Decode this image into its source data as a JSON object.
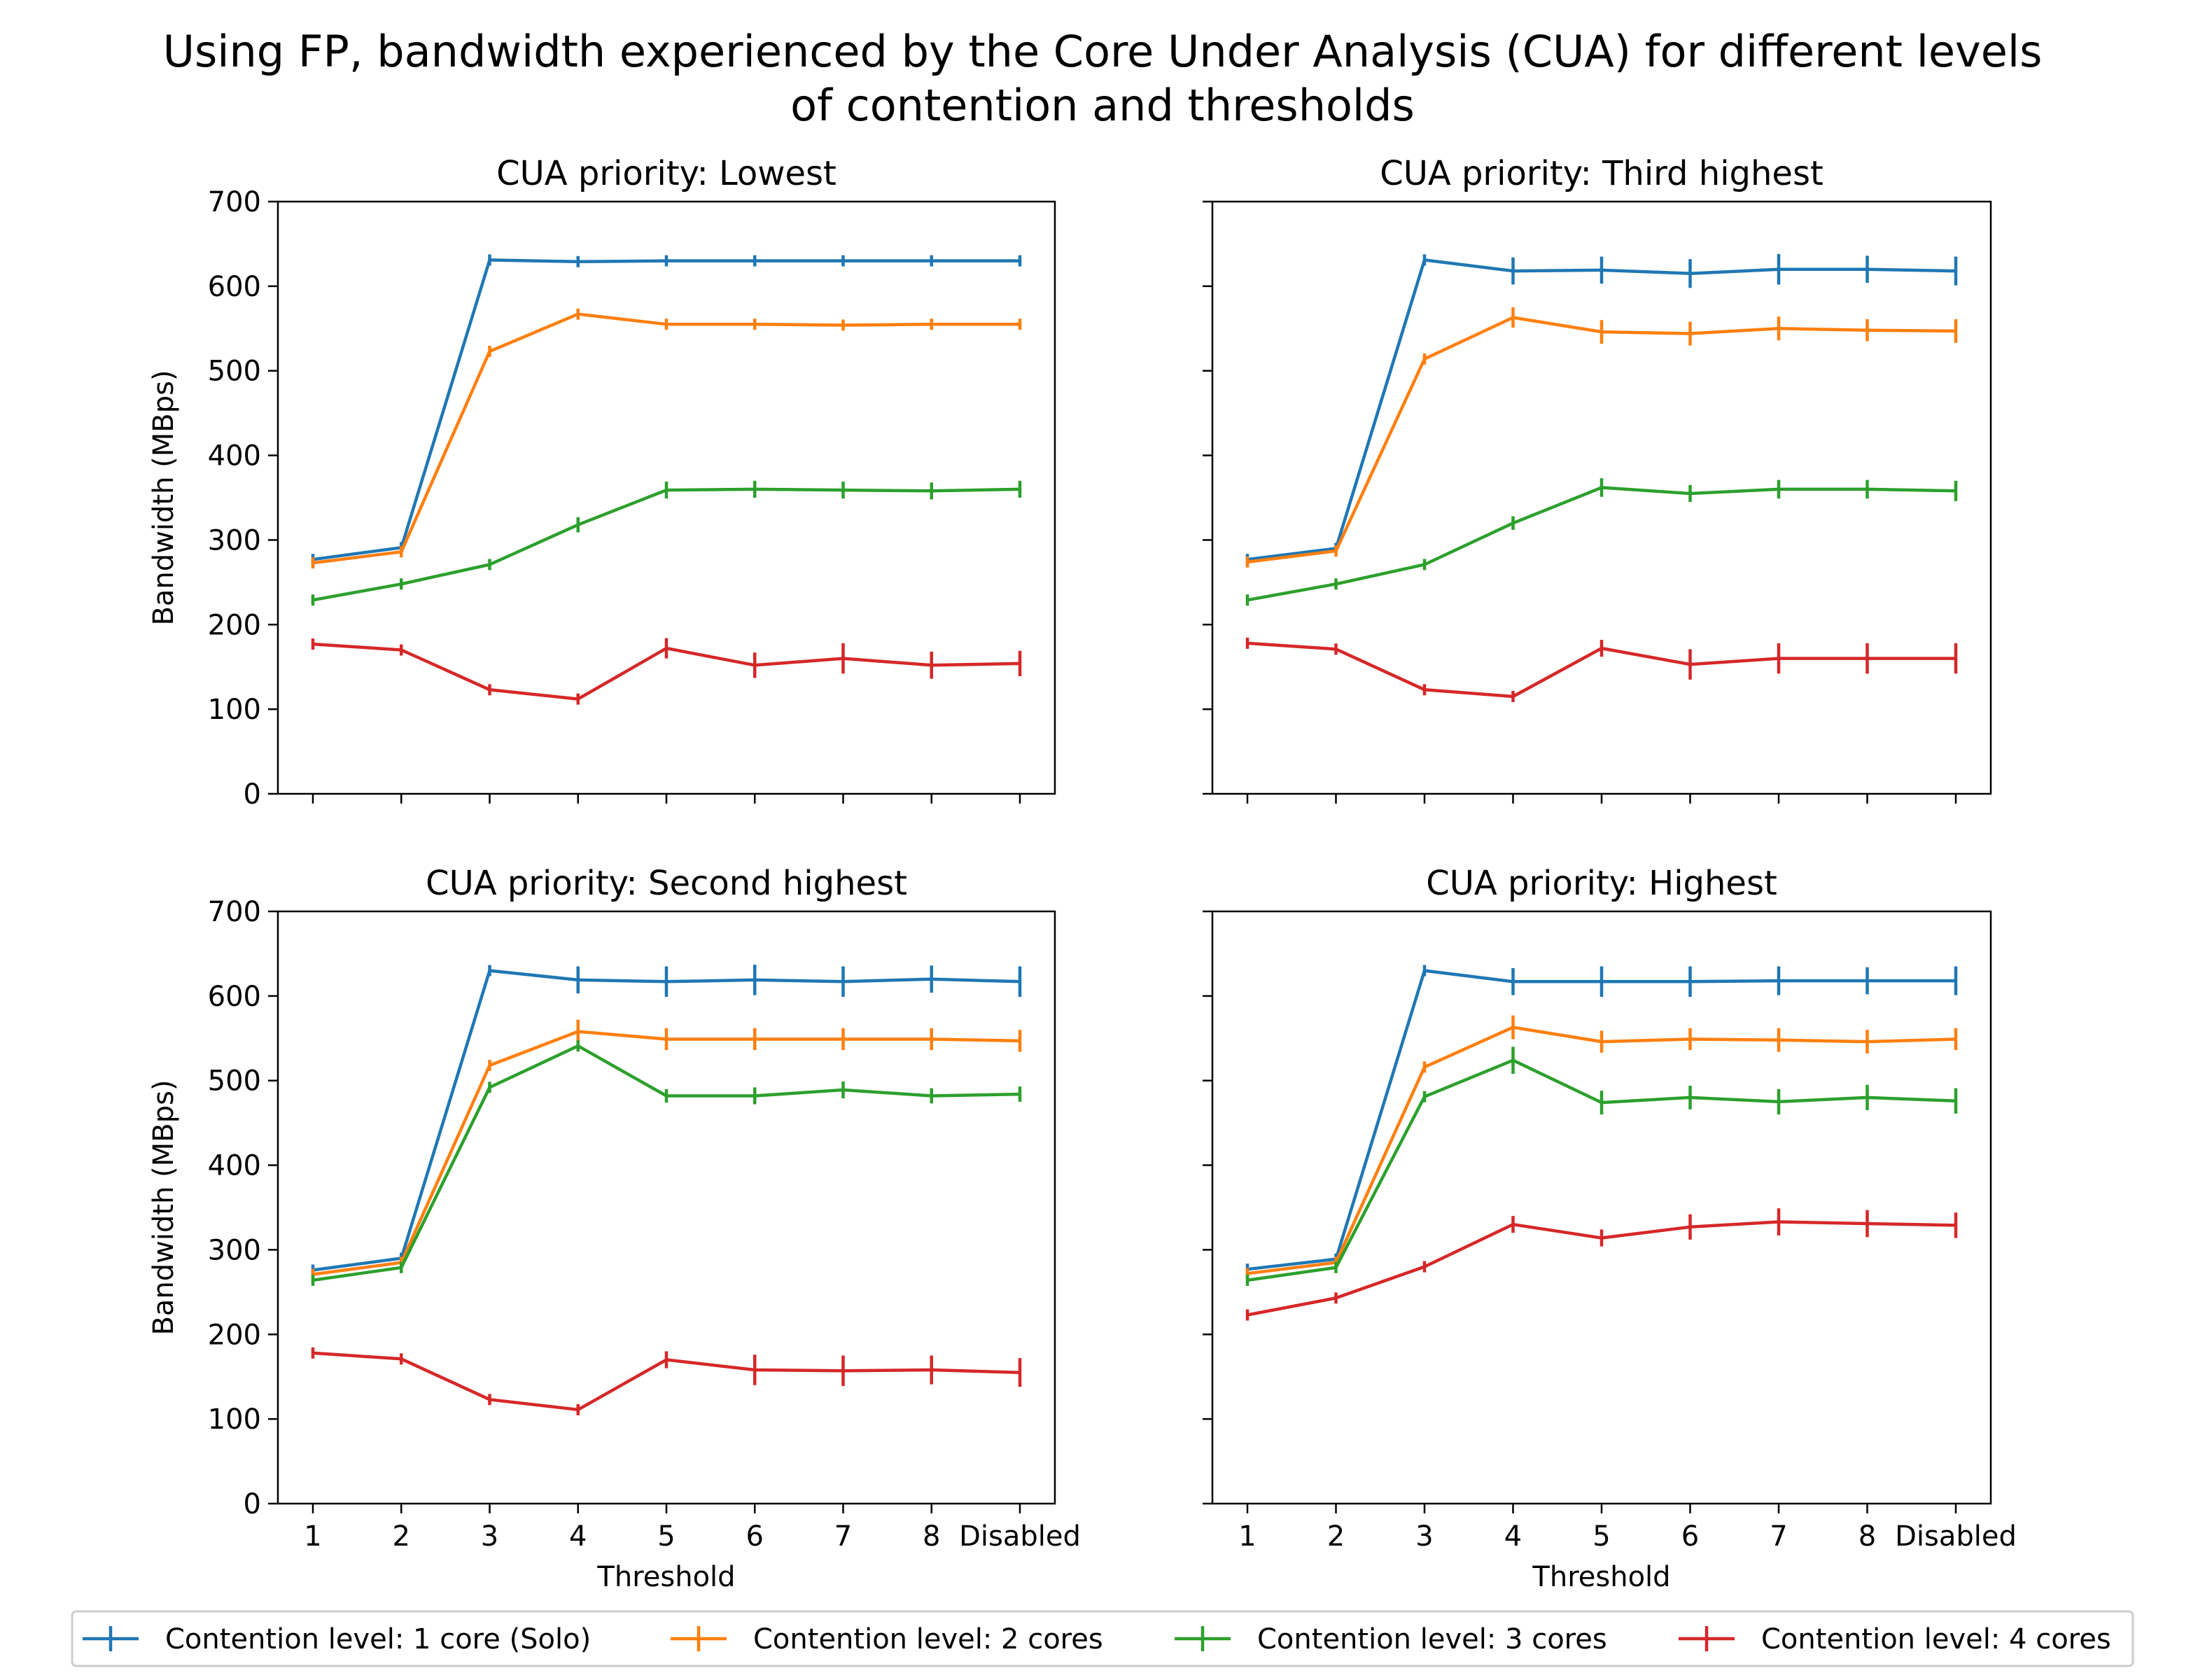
{
  "figure": {
    "title_line1": "Using FP, bandwidth experienced by the Core Under Analysis (CUA) for different levels",
    "title_line2": "of contention and thresholds"
  },
  "colors": {
    "c1": "#1f77b4",
    "c2": "#ff7f0e",
    "c3": "#2ca02c",
    "c4": "#d62728"
  },
  "legend": {
    "placement": "bottom-center",
    "entries": [
      "Contention level: 1 core (Solo)",
      "Contention level: 2 cores",
      "Contention level: 3 cores",
      "Contention level: 4 cores"
    ]
  },
  "chart_data": [
    {
      "type": "line",
      "title": "CUA priority: Lowest",
      "xlabel": "",
      "ylabel": "Bandwidth (MBps)",
      "categories": [
        "1",
        "2",
        "3",
        "4",
        "5",
        "6",
        "7",
        "8",
        "Disabled"
      ],
      "yticks": [
        "0",
        "100",
        "200",
        "300",
        "400",
        "500",
        "600",
        "700"
      ],
      "ylim": [
        0,
        700
      ],
      "show_xticklabels": false,
      "show_yticklabels": true,
      "grid": false,
      "series": [
        {
          "values": [
            277,
            291,
            631,
            629,
            630,
            630,
            630,
            630,
            630
          ],
          "err": [
            0,
            0,
            0,
            5,
            4,
            3,
            3,
            3,
            3
          ]
        },
        {
          "values": [
            273,
            286,
            523,
            567,
            555,
            555,
            554,
            555,
            555
          ],
          "err": [
            0,
            0,
            0,
            5,
            5,
            5,
            4,
            4,
            4
          ]
        },
        {
          "values": [
            229,
            248,
            271,
            318,
            359,
            360,
            359,
            358,
            360
          ],
          "err": [
            0,
            0,
            0,
            9,
            10,
            10,
            10,
            10,
            10
          ]
        },
        {
          "values": [
            177,
            170,
            123,
            112,
            172,
            152,
            160,
            152,
            154
          ],
          "err": [
            0,
            0,
            0,
            6,
            12,
            15,
            18,
            16,
            15
          ]
        }
      ]
    },
    {
      "type": "line",
      "title": "CUA priority: Third highest",
      "xlabel": "",
      "ylabel": "",
      "categories": [
        "1",
        "2",
        "3",
        "4",
        "5",
        "6",
        "7",
        "8",
        "Disabled"
      ],
      "yticks": [
        "0",
        "100",
        "200",
        "300",
        "400",
        "500",
        "600",
        "700"
      ],
      "ylim": [
        0,
        700
      ],
      "show_xticklabels": false,
      "show_yticklabels": false,
      "grid": false,
      "series": [
        {
          "values": [
            277,
            290,
            631,
            618,
            619,
            615,
            620,
            620,
            618
          ],
          "err": [
            0,
            0,
            0,
            16,
            16,
            17,
            18,
            16,
            17
          ]
        },
        {
          "values": [
            274,
            287,
            514,
            563,
            546,
            544,
            550,
            548,
            547
          ],
          "err": [
            0,
            0,
            0,
            12,
            14,
            14,
            14,
            13,
            14
          ]
        },
        {
          "values": [
            229,
            248,
            271,
            320,
            362,
            355,
            360,
            360,
            358
          ],
          "err": [
            0,
            0,
            0,
            8,
            11,
            10,
            11,
            11,
            12
          ]
        },
        {
          "values": [
            178,
            171,
            123,
            115,
            172,
            153,
            160,
            160,
            160
          ],
          "err": [
            0,
            0,
            0,
            6,
            10,
            18,
            18,
            18,
            18
          ]
        }
      ]
    },
    {
      "type": "line",
      "title": "CUA priority: Second highest",
      "xlabel": "Threshold",
      "ylabel": "Bandwidth (MBps)",
      "categories": [
        "1",
        "2",
        "3",
        "4",
        "5",
        "6",
        "7",
        "8",
        "Disabled"
      ],
      "yticks": [
        "0",
        "100",
        "200",
        "300",
        "400",
        "500",
        "600",
        "700"
      ],
      "ylim": [
        0,
        700
      ],
      "show_xticklabels": true,
      "show_yticklabels": true,
      "grid": false,
      "series": [
        {
          "values": [
            276,
            290,
            630,
            619,
            617,
            619,
            617,
            620,
            617
          ],
          "err": [
            0,
            0,
            0,
            16,
            18,
            18,
            18,
            16,
            18
          ]
        },
        {
          "values": [
            271,
            285,
            518,
            558,
            549,
            549,
            549,
            549,
            547
          ],
          "err": [
            0,
            0,
            5,
            14,
            13,
            13,
            13,
            13,
            13
          ]
        },
        {
          "values": [
            264,
            279,
            492,
            541,
            482,
            482,
            489,
            482,
            484
          ],
          "err": [
            0,
            0,
            0,
            6,
            8,
            10,
            10,
            9,
            9
          ]
        },
        {
          "values": [
            178,
            171,
            123,
            111,
            170,
            158,
            157,
            158,
            155
          ],
          "err": [
            0,
            0,
            0,
            6,
            10,
            18,
            18,
            17,
            17
          ]
        }
      ]
    },
    {
      "type": "line",
      "title": "CUA priority: Highest",
      "xlabel": "Threshold",
      "ylabel": "",
      "categories": [
        "1",
        "2",
        "3",
        "4",
        "5",
        "6",
        "7",
        "8",
        "Disabled"
      ],
      "yticks": [
        "0",
        "100",
        "200",
        "300",
        "400",
        "500",
        "600",
        "700"
      ],
      "ylim": [
        0,
        700
      ],
      "show_xticklabels": true,
      "show_yticklabels": false,
      "grid": false,
      "series": [
        {
          "values": [
            277,
            289,
            630,
            617,
            617,
            617,
            618,
            618,
            618
          ],
          "err": [
            0,
            0,
            0,
            16,
            18,
            18,
            17,
            16,
            17
          ]
        },
        {
          "values": [
            272,
            285,
            516,
            563,
            546,
            549,
            548,
            546,
            549
          ],
          "err": [
            0,
            0,
            5,
            14,
            13,
            13,
            14,
            14,
            13
          ]
        },
        {
          "values": [
            264,
            279,
            481,
            524,
            474,
            480,
            475,
            480,
            476
          ],
          "err": [
            0,
            0,
            0,
            16,
            14,
            14,
            15,
            15,
            15
          ]
        },
        {
          "values": [
            223,
            243,
            280,
            330,
            314,
            327,
            333,
            331,
            329
          ],
          "err": [
            0,
            0,
            0,
            10,
            10,
            15,
            16,
            16,
            15
          ]
        }
      ]
    }
  ]
}
